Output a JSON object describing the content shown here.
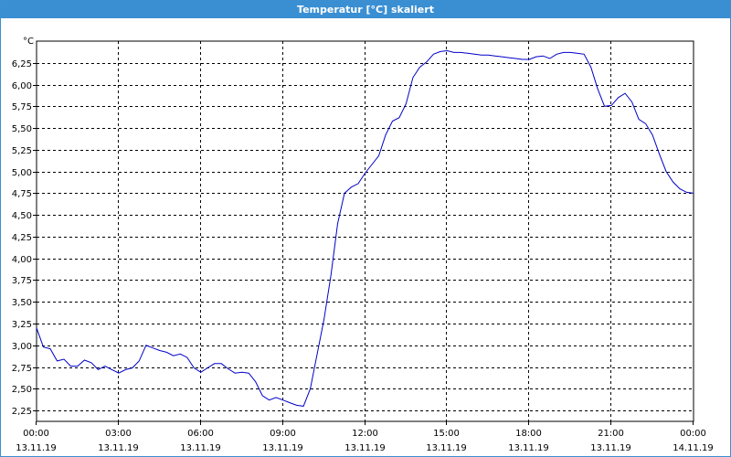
{
  "window": {
    "title": "Temperatur [°C] skaliert"
  },
  "colors": {
    "title_bar": "#3a8fd3",
    "series": "#0000c8",
    "grid": "#000000"
  },
  "chart_data": {
    "type": "line",
    "title": "Temperatur [°C] skaliert",
    "y_unit": "°C",
    "ylim": [
      2.125,
      6.5
    ],
    "xlim": [
      0,
      24
    ],
    "grid": true,
    "grid_style": "dashed",
    "y_ticks": [
      2.25,
      2.5,
      2.75,
      3.0,
      3.25,
      3.5,
      3.75,
      4.0,
      4.25,
      4.5,
      4.75,
      5.0,
      5.25,
      5.5,
      5.75,
      6.0,
      6.25
    ],
    "y_tick_labels": [
      "2,25",
      "2,50",
      "2,75",
      "3,00",
      "3,25",
      "3,50",
      "3,75",
      "4,00",
      "4,25",
      "4,50",
      "4,75",
      "5,00",
      "5,25",
      "5,50",
      "5,75",
      "6,00",
      "6,25"
    ],
    "x_ticks": [
      {
        "hour": 0,
        "time": "00:00",
        "date": "13.11.19"
      },
      {
        "hour": 3,
        "time": "03:00",
        "date": "13.11.19"
      },
      {
        "hour": 6,
        "time": "06:00",
        "date": "13.11.19"
      },
      {
        "hour": 9,
        "time": "09:00",
        "date": "13.11.19"
      },
      {
        "hour": 12,
        "time": "12:00",
        "date": "13.11.19"
      },
      {
        "hour": 15,
        "time": "15:00",
        "date": "13.11.19"
      },
      {
        "hour": 18,
        "time": "18:00",
        "date": "13.11.19"
      },
      {
        "hour": 21,
        "time": "21:00",
        "date": "13.11.19"
      },
      {
        "hour": 24,
        "time": "00:00",
        "date": "14.11.19"
      }
    ],
    "series": [
      {
        "x": [
          0.0,
          0.25,
          0.5,
          0.75,
          1.0,
          1.25,
          1.5,
          1.75,
          2.0,
          2.25,
          2.5,
          2.75,
          3.0,
          3.25,
          3.5,
          3.75,
          4.0,
          4.25,
          4.5,
          4.75,
          5.0,
          5.25,
          5.5,
          5.75,
          6.0,
          6.25,
          6.5,
          6.75,
          7.0,
          7.25,
          7.5,
          7.75,
          8.0,
          8.25,
          8.5,
          8.75,
          9.0,
          9.25,
          9.5,
          9.75,
          10.0,
          10.25,
          10.5,
          10.75,
          11.0,
          11.25,
          11.5,
          11.75,
          12.0,
          12.25,
          12.5,
          12.75,
          13.0,
          13.25,
          13.5,
          13.75,
          14.0,
          14.25,
          14.5,
          14.75,
          15.0,
          15.25,
          15.5,
          15.75,
          16.0,
          16.25,
          16.5,
          16.75,
          17.0,
          17.25,
          17.5,
          17.75,
          18.0,
          18.25,
          18.5,
          18.75,
          19.0,
          19.25,
          19.5,
          19.75,
          20.0,
          20.25,
          20.5,
          20.75,
          21.0,
          21.25,
          21.5,
          21.75,
          22.0,
          22.25,
          22.5,
          22.75,
          23.0,
          23.25,
          23.5,
          23.75,
          24.0
        ],
        "y": [
          3.2,
          2.98,
          2.96,
          2.82,
          2.84,
          2.76,
          2.76,
          2.83,
          2.8,
          2.72,
          2.76,
          2.72,
          2.68,
          2.72,
          2.74,
          2.82,
          3.0,
          2.97,
          2.94,
          2.92,
          2.88,
          2.9,
          2.86,
          2.74,
          2.69,
          2.74,
          2.79,
          2.79,
          2.73,
          2.68,
          2.69,
          2.68,
          2.58,
          2.42,
          2.37,
          2.4,
          2.37,
          2.34,
          2.31,
          2.3,
          2.5,
          2.9,
          3.3,
          3.8,
          4.4,
          4.75,
          4.82,
          4.86,
          4.98,
          5.08,
          5.18,
          5.42,
          5.58,
          5.62,
          5.78,
          6.08,
          6.2,
          6.26,
          6.35,
          6.38,
          6.39,
          6.37,
          6.37,
          6.36,
          6.35,
          6.34,
          6.34,
          6.33,
          6.32,
          6.31,
          6.3,
          6.29,
          6.29,
          6.32,
          6.33,
          6.3,
          6.35,
          6.37,
          6.37,
          6.36,
          6.35,
          6.2,
          5.95,
          5.75,
          5.76,
          5.85,
          5.9,
          5.8,
          5.6,
          5.55,
          5.42,
          5.2,
          5.0,
          4.88,
          4.8,
          4.76,
          4.75
        ]
      }
    ]
  }
}
